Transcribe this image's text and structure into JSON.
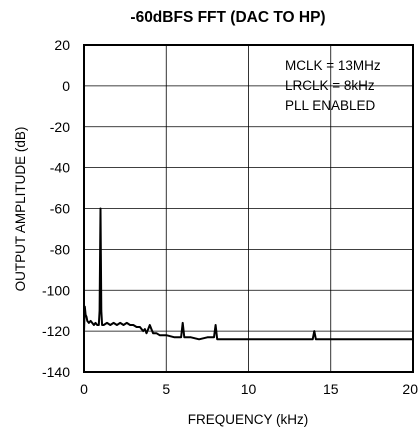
{
  "chart_data": {
    "type": "line",
    "title": "-60dBFS FFT (DAC TO HP)",
    "xlabel": "FREQUENCY (kHz)",
    "ylabel": "OUTPUT AMPLITUDE (dB)",
    "xlim": [
      0,
      20
    ],
    "ylim": [
      -140,
      20
    ],
    "x_ticks": [
      0,
      5,
      10,
      15,
      20
    ],
    "y_ticks": [
      20,
      0,
      -20,
      -40,
      -60,
      -80,
      -100,
      -120,
      -140
    ],
    "grid": true,
    "annotations": [
      "MCLK = 13MHz",
      "LRCLK = 8kHz",
      "PLL ENABLED"
    ],
    "series": [
      {
        "x": [
          0,
          0.05,
          0.1,
          0.15,
          0.2,
          0.3,
          0.4,
          0.5,
          0.6,
          0.7,
          0.8,
          0.9,
          0.95,
          1.0,
          1.05,
          1.1,
          1.2,
          1.4,
          1.6,
          1.8,
          2.0,
          2.2,
          2.4,
          2.6,
          2.8,
          3.0,
          3.2,
          3.4,
          3.5,
          3.6,
          3.7,
          3.8,
          3.9,
          4.0,
          4.1,
          4.2,
          4.4,
          4.6,
          4.8,
          5.0,
          5.5,
          5.9,
          6.0,
          6.1,
          6.5,
          7.0,
          7.5,
          7.9,
          8.0,
          8.1,
          8.5,
          9.0,
          10.0,
          11.0,
          12.0,
          13.0,
          13.9,
          14.0,
          14.1,
          15.0,
          16.0,
          17.0,
          18.0,
          19.0,
          20.0
        ],
        "y": [
          -120,
          -108,
          -112,
          -113,
          -115,
          -116,
          -115,
          -116,
          -117,
          -116,
          -117,
          -117,
          -110,
          -60,
          -110,
          -117,
          -117,
          -116,
          -117,
          -116,
          -117,
          -116,
          -117,
          -116,
          -117,
          -117,
          -118,
          -118,
          -119,
          -120,
          -119,
          -121,
          -119,
          -117,
          -119,
          -121,
          -121,
          -122,
          -122,
          -122,
          -123,
          -123,
          -116,
          -123,
          -123,
          -124,
          -123,
          -123,
          -117,
          -124,
          -124,
          -124,
          -124,
          -124,
          -124,
          -124,
          -124,
          -120,
          -124,
          -124,
          -124,
          -124,
          -124,
          -124,
          -124
        ]
      }
    ]
  }
}
